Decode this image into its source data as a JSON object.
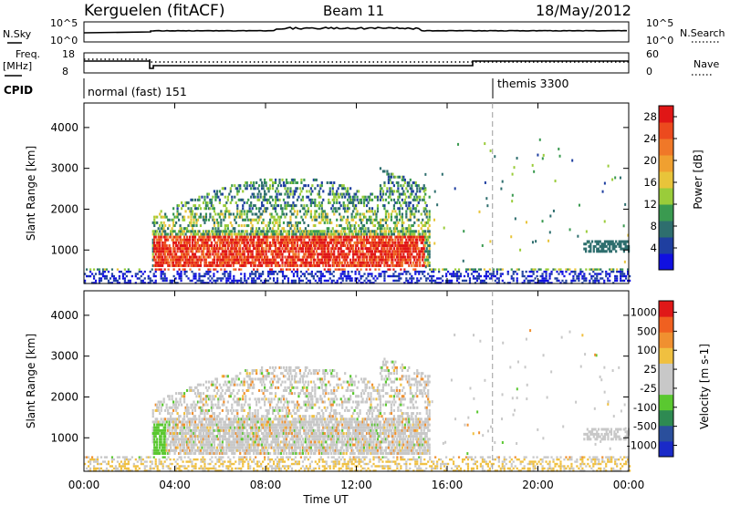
{
  "header": {
    "station": "Kerguelen (fitACF)",
    "beam": "Beam 11",
    "date": "18/May/2012"
  },
  "panels": {
    "nsky": {
      "left_label": "N.Sky",
      "left_ticks": [
        "10^5",
        "10^0"
      ],
      "right_ticks": [
        "10^5",
        "10^0"
      ],
      "right_label": "N.Search"
    },
    "freq": {
      "left_label_1": "Freq.",
      "left_label_2": "[MHz]",
      "left_ticks": [
        "18",
        "8"
      ],
      "right_ticks": [
        "60",
        "0"
      ],
      "right_label": "Nave"
    },
    "cpid": {
      "label": "CPID",
      "segments": [
        "normal (fast) 151",
        "themis 3300"
      ]
    }
  },
  "chart_data": [
    {
      "type": "heatmap",
      "name": "power",
      "ylabel": "Slant Range [km]",
      "xlabel": "",
      "x_ticks": [
        "00:00",
        "04:00",
        "08:00",
        "12:00",
        "16:00",
        "20:00",
        "00:00"
      ],
      "xlim_hours": [
        0,
        24
      ],
      "y_ticks": [
        1000,
        2000,
        3000,
        4000
      ],
      "ylim": [
        180,
        4600
      ],
      "colorbar": {
        "label": "Power [dB]",
        "ticks": [
          "4",
          "8",
          "12",
          "16",
          "20",
          "24",
          "28"
        ],
        "colors": [
          "#1010e0",
          "#1f3fa0",
          "#2e6e6e",
          "#3a9a50",
          "#9acc3a",
          "#e8c43a",
          "#f0a030",
          "#f07828",
          "#ec4a1e",
          "#e01616"
        ]
      }
    },
    {
      "type": "heatmap",
      "name": "velocity",
      "ylabel": "Slant Range [km]",
      "xlabel": "Time UT",
      "x_ticks": [
        "00:00",
        "04:00",
        "08:00",
        "12:00",
        "16:00",
        "20:00",
        "00:00"
      ],
      "xlim_hours": [
        0,
        24
      ],
      "y_ticks": [
        1000,
        2000,
        3000,
        4000
      ],
      "ylim": [
        180,
        4600
      ],
      "colorbar": {
        "label": "Velocity [m s-1]",
        "ticks": [
          "1000",
          "500",
          "100",
          "25",
          "-25",
          "-100",
          "-500",
          "-1000"
        ],
        "colors": [
          "#1a2ac8",
          "#2a4f9c",
          "#2e8a52",
          "#5ac830",
          "#c8c8c8",
          "#c8c8c8",
          "#f0c040",
          "#f09030",
          "#f06020",
          "#e01818"
        ]
      }
    }
  ],
  "scatter_grey": "#c8c8c8",
  "themis_switch_hour": 18.0
}
